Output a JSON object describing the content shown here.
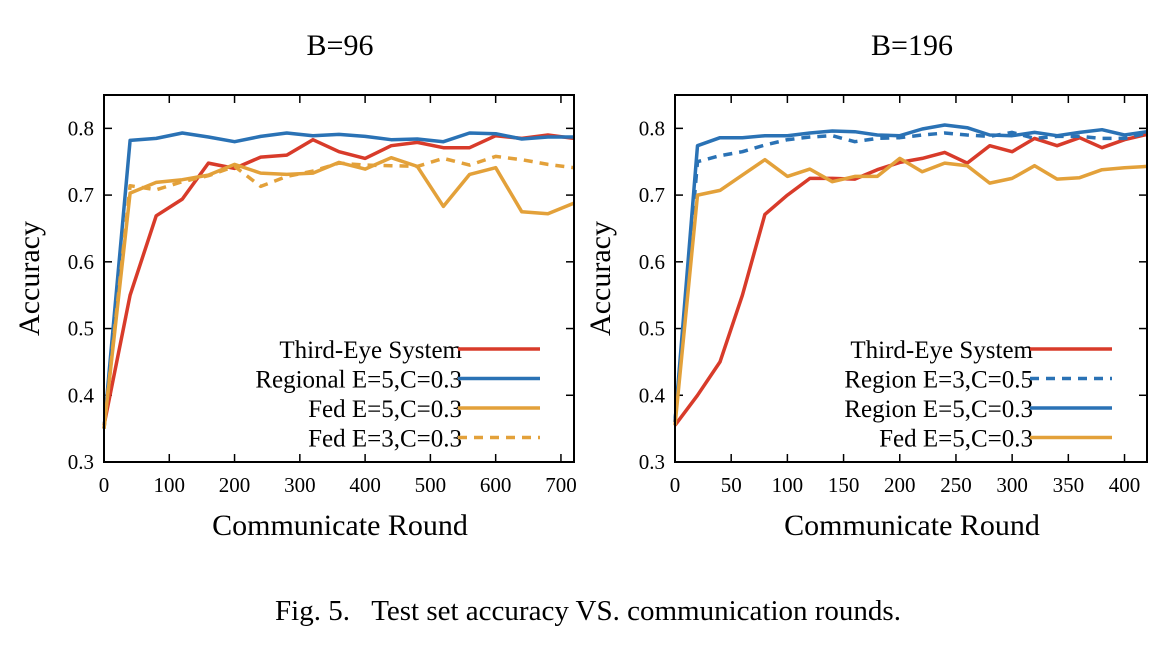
{
  "caption": "Fig. 5.   Test set accuracy VS. communication rounds.",
  "chart_data": [
    {
      "type": "line",
      "title": "B=96",
      "xlabel": "Communicate Round",
      "ylabel": "Accuracy",
      "xlim": [
        0,
        720
      ],
      "ylim": [
        0.3,
        0.85
      ],
      "xticks": [
        0,
        100,
        200,
        300,
        400,
        500,
        600,
        700
      ],
      "yticks": [
        0.3,
        0.4,
        0.5,
        0.6,
        0.7,
        0.8
      ],
      "legend_position": "bottom-right",
      "x": [
        0,
        40,
        80,
        120,
        160,
        200,
        240,
        280,
        320,
        360,
        400,
        440,
        480,
        520,
        560,
        600,
        640,
        680,
        720
      ],
      "series": [
        {
          "name": "Third-Eye System",
          "color": "#d83b2a",
          "dash": false,
          "values": [
            0.355,
            0.55,
            0.669,
            0.694,
            0.748,
            0.74,
            0.757,
            0.76,
            0.783,
            0.765,
            0.755,
            0.774,
            0.779,
            0.771,
            0.771,
            0.789,
            0.785,
            0.79,
            0.785
          ]
        },
        {
          "name": "Regional E=5,C=0.3",
          "color": "#2a72b5",
          "dash": false,
          "values": [
            0.35,
            0.782,
            0.785,
            0.793,
            0.787,
            0.78,
            0.788,
            0.793,
            0.789,
            0.791,
            0.788,
            0.783,
            0.784,
            0.78,
            0.793,
            0.792,
            0.784,
            0.787,
            0.787
          ]
        },
        {
          "name": "Fed E=5,C=0.3",
          "color": "#e3a13a",
          "dash": false,
          "values": [
            0.35,
            0.703,
            0.719,
            0.723,
            0.73,
            0.746,
            0.733,
            0.731,
            0.733,
            0.749,
            0.739,
            0.756,
            0.743,
            0.683,
            0.731,
            0.741,
            0.675,
            0.672,
            0.688
          ]
        },
        {
          "name": "Fed E=3,C=0.3",
          "color": "#e3a13a",
          "dash": true,
          "values": [
            0.35,
            0.714,
            0.708,
            0.72,
            0.729,
            0.743,
            0.713,
            0.728,
            0.736,
            0.748,
            0.745,
            0.744,
            0.743,
            0.755,
            0.745,
            0.758,
            0.753,
            0.746,
            0.741
          ]
        }
      ]
    },
    {
      "type": "line",
      "title": "B=196",
      "xlabel": "Communicate Round",
      "ylabel": "Accuracy",
      "xlim": [
        0,
        420
      ],
      "ylim": [
        0.3,
        0.85
      ],
      "xticks": [
        0,
        50,
        100,
        150,
        200,
        250,
        300,
        350,
        400
      ],
      "yticks": [
        0.3,
        0.4,
        0.5,
        0.6,
        0.7,
        0.8
      ],
      "legend_position": "bottom-right",
      "x": [
        0,
        20,
        40,
        60,
        80,
        100,
        120,
        140,
        160,
        180,
        200,
        220,
        240,
        260,
        280,
        300,
        320,
        340,
        360,
        380,
        400,
        420
      ],
      "series": [
        {
          "name": "Third-Eye System",
          "color": "#d83b2a",
          "dash": false,
          "values": [
            0.355,
            0.4,
            0.45,
            0.55,
            0.671,
            0.7,
            0.725,
            0.725,
            0.724,
            0.738,
            0.749,
            0.755,
            0.764,
            0.748,
            0.774,
            0.765,
            0.785,
            0.774,
            0.786,
            0.771,
            0.783,
            0.791
          ]
        },
        {
          "name": "Region E=3,C=0.5",
          "color": "#2a72b5",
          "dash": true,
          "values": [
            0.36,
            0.75,
            0.759,
            0.765,
            0.775,
            0.783,
            0.787,
            0.789,
            0.78,
            0.785,
            0.786,
            0.79,
            0.793,
            0.79,
            0.788,
            0.794,
            0.785,
            0.788,
            0.788,
            0.785,
            0.785,
            0.793
          ]
        },
        {
          "name": "Region E=5,C=0.3",
          "color": "#2a72b5",
          "dash": false,
          "values": [
            0.36,
            0.774,
            0.786,
            0.786,
            0.789,
            0.789,
            0.793,
            0.796,
            0.795,
            0.79,
            0.789,
            0.799,
            0.805,
            0.801,
            0.79,
            0.789,
            0.794,
            0.789,
            0.794,
            0.798,
            0.79,
            0.795
          ]
        },
        {
          "name": "Fed E=5,C=0.3",
          "color": "#e3a13a",
          "dash": false,
          "values": [
            0.355,
            0.7,
            0.707,
            0.73,
            0.753,
            0.728,
            0.739,
            0.72,
            0.728,
            0.728,
            0.755,
            0.735,
            0.748,
            0.744,
            0.718,
            0.725,
            0.744,
            0.724,
            0.726,
            0.738,
            0.741,
            0.743
          ]
        }
      ]
    }
  ]
}
